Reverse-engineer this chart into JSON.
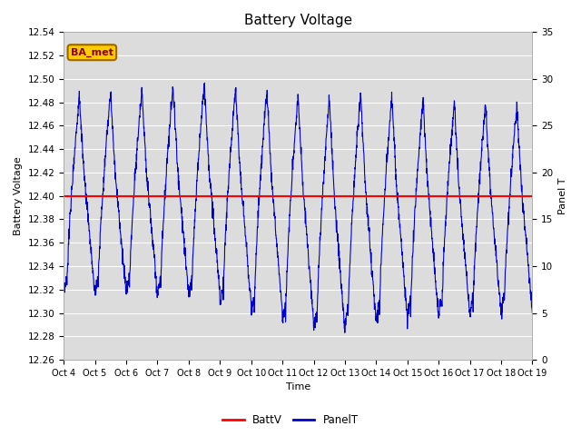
{
  "title": "Battery Voltage",
  "xlabel": "Time",
  "ylabel_left": "Battery Voltage",
  "ylabel_right": "Panel T",
  "ylim_left": [
    12.26,
    12.54
  ],
  "ylim_right": [
    0,
    35
  ],
  "yticks_left": [
    12.26,
    12.28,
    12.3,
    12.32,
    12.34,
    12.36,
    12.38,
    12.4,
    12.42,
    12.44,
    12.46,
    12.48,
    12.5,
    12.52,
    12.54
  ],
  "yticks_right": [
    0,
    5,
    10,
    15,
    20,
    25,
    30,
    35
  ],
  "xtick_labels": [
    "Oct 4",
    "Oct 5",
    "Oct 6",
    "Oct 7",
    "Oct 8",
    "Oct 9",
    "Oct 10",
    "Oct 11",
    "Oct 12",
    "Oct 13",
    "Oct 14",
    "Oct 15",
    "Oct 16",
    "Oct 17",
    "Oct 18",
    "Oct 19"
  ],
  "batt_v": 12.4,
  "batt_color": "#ff0000",
  "panel_color": "#0000cc",
  "annotation_text": "BA_met",
  "annotation_bg": "#ffcc00",
  "annotation_border": "#996600",
  "bg_color": "#dcdcdc",
  "legend_labels": [
    "BattV",
    "PanelT"
  ],
  "fig_width": 6.4,
  "fig_height": 4.8,
  "dpi": 100
}
